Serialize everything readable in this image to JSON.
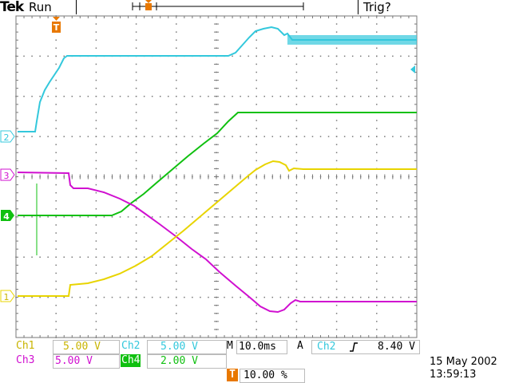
{
  "header": {
    "brand": "Tek",
    "run_state": "Run",
    "trigger_state": "Trig?"
  },
  "channels": {
    "ch1": {
      "label": "Ch1",
      "scale": "5.00 V",
      "marker": "1",
      "color": "#e8d400"
    },
    "ch2": {
      "label": "Ch2",
      "scale": "5.00 V",
      "marker": "2",
      "color": "#33c8dc"
    },
    "ch3": {
      "label": "Ch3",
      "scale": "5.00 V",
      "marker": "3",
      "color": "#d010d0"
    },
    "ch4": {
      "label": "Ch4",
      "scale": "2.00 V",
      "marker": "4",
      "color": "#10c010"
    }
  },
  "timebase": {
    "prefix": "M",
    "value": "10.0ms"
  },
  "trigger": {
    "mode": "A",
    "source": "Ch2",
    "slope_icon": "rising-edge-icon",
    "level": "8.40 V",
    "marker": "T",
    "position": "10.00 %",
    "color": "#e87800"
  },
  "timestamp": {
    "date": "15 May 2002",
    "time": "13:59:13"
  },
  "colors": {
    "grid": "#777777",
    "marker_text": "#ffffff"
  }
}
